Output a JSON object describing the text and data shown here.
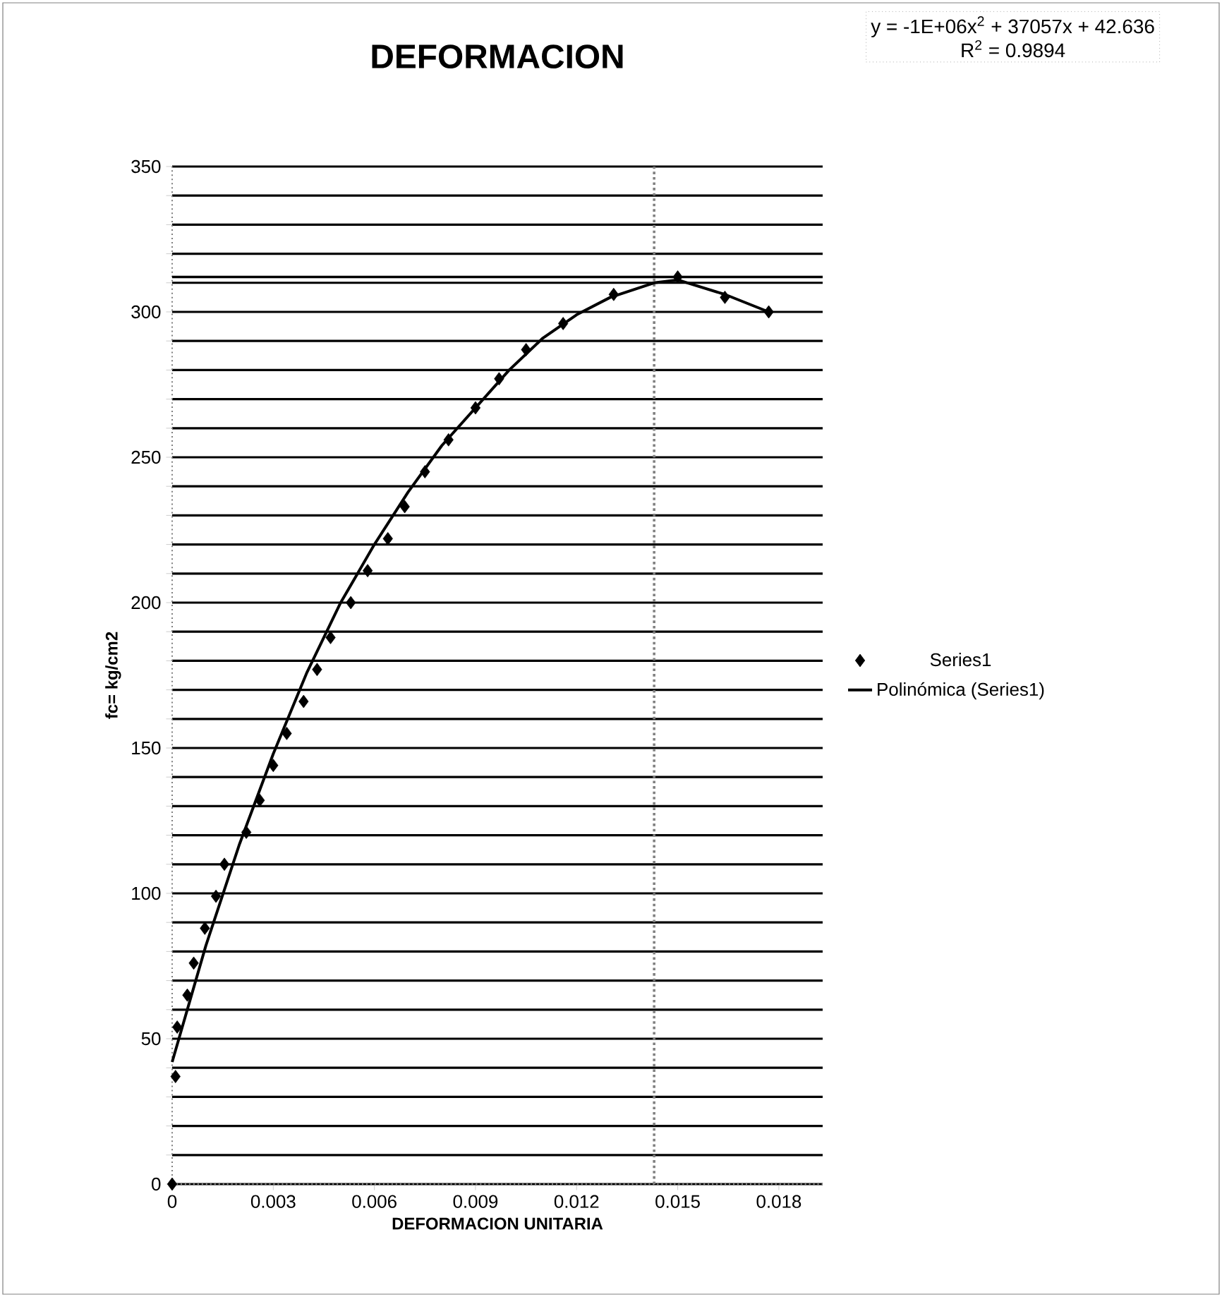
{
  "chart_data": {
    "type": "scatter",
    "title": "DEFORMACION",
    "xlabel": "DEFORMACION UNITARIA",
    "ylabel": "fc= kg/cm2",
    "annotations": [
      "y = -1E+06x$^{2}$ + 37057x + 42.636",
      "R$^{2}$ = 0.9894"
    ],
    "series": [
      {
        "name": "Series1",
        "marker": "diamond",
        "color": "#000000",
        "x": [
          0,
          0.0001,
          0.00015,
          0.00045,
          0.00064,
          0.00097,
          0.0013,
          0.00155,
          0.0022,
          0.0026,
          0.003,
          0.0034,
          0.0039,
          0.0043,
          0.0047,
          0.0053,
          0.0058,
          0.0064,
          0.0069,
          0.0075,
          0.0082,
          0.009,
          0.0097,
          0.0105,
          0.0116,
          0.0131,
          0.015,
          0.0164,
          0.0177
        ],
        "values": [
          0,
          37,
          54,
          65,
          76,
          88,
          99,
          110,
          121,
          132,
          144,
          155,
          166,
          177,
          188,
          200,
          211,
          222,
          233,
          245,
          256,
          267,
          277,
          287,
          296,
          306,
          312,
          305,
          300
        ]
      },
      {
        "name": "Polinómica (Series1)",
        "type": "line",
        "marker": "none",
        "line_style": "solid",
        "color": "#000000",
        "x": [
          0,
          0.001,
          0.002,
          0.003,
          0.004,
          0.005,
          0.006,
          0.007,
          0.008,
          0.009,
          0.01,
          0.011,
          0.012,
          0.013,
          0.0143,
          0.015,
          0.0164,
          0.0177
        ],
        "values": [
          42,
          82,
          117,
          148,
          176,
          200,
          220,
          238,
          254,
          267,
          280,
          291,
          299,
          305,
          310,
          311,
          306,
          300
        ]
      }
    ],
    "xlim": [
      0,
      0.0193
    ],
    "ylim": [
      0,
      350
    ],
    "xticks": [
      0,
      0.003,
      0.006,
      0.009,
      0.012,
      0.015,
      0.018
    ],
    "yticks": [
      0,
      {
        "value": 10,
        "label": null
      },
      {
        "value": 20,
        "label": null
      },
      {
        "value": 30,
        "label": null
      },
      {
        "value": 40,
        "label": null
      },
      50,
      {
        "value": 60,
        "label": null
      },
      {
        "value": 70,
        "label": null
      },
      {
        "value": 80,
        "label": null
      },
      {
        "value": 90,
        "label": null
      },
      100,
      {
        "value": 110,
        "label": null
      },
      {
        "value": 120,
        "label": null
      },
      {
        "value": 130,
        "label": null
      },
      {
        "value": 140,
        "label": null
      },
      150,
      {
        "value": 160,
        "label": null
      },
      {
        "value": 170,
        "label": null
      },
      {
        "value": 180,
        "label": null
      },
      {
        "value": 190,
        "label": null
      },
      200,
      {
        "value": 210,
        "label": null
      },
      {
        "value": 220,
        "label": null
      },
      {
        "value": 230,
        "label": null
      },
      {
        "value": 240,
        "label": null
      },
      250,
      {
        "value": 260,
        "label": null
      },
      {
        "value": 270,
        "label": null
      },
      {
        "value": 280,
        "label": null
      },
      {
        "value": 290,
        "label": null
      },
      300,
      {
        "value": 310,
        "label": null
      },
      {
        "value": 320,
        "label": null
      },
      {
        "value": 330,
        "label": null
      },
      {
        "value": 340,
        "label": null
      },
      350
    ],
    "ref_lines": [
      {
        "axis": "x",
        "value": 0.0143,
        "color": "#808080",
        "line_style": "dotted"
      },
      {
        "axis": "y",
        "value": 312,
        "color": "#000000",
        "line_style": "solid"
      }
    ],
    "grid": "y",
    "legend": "right"
  }
}
